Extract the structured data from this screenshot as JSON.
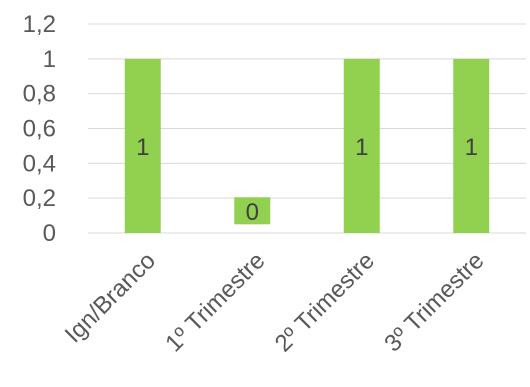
{
  "chart_data": {
    "type": "bar",
    "categories": [
      "Ign/Branco",
      "1º Trimestre",
      "2º Trimestre",
      "3º Trimestre"
    ],
    "values": [
      1,
      0,
      1,
      1
    ],
    "data_labels": [
      "1",
      "0",
      "1",
      "1"
    ],
    "ylim": [
      0,
      1.2
    ],
    "yticks": [
      0,
      0.2,
      0.4,
      0.6,
      0.8,
      1,
      1.2
    ],
    "ytick_labels": [
      "0",
      "0,2",
      "0,4",
      "0,6",
      "0,8",
      "1",
      "1,2"
    ],
    "grid": true,
    "legend": "none",
    "colors": {
      "bar": "#92D050",
      "grid": "#D9D9D9",
      "text": "#595959"
    }
  }
}
